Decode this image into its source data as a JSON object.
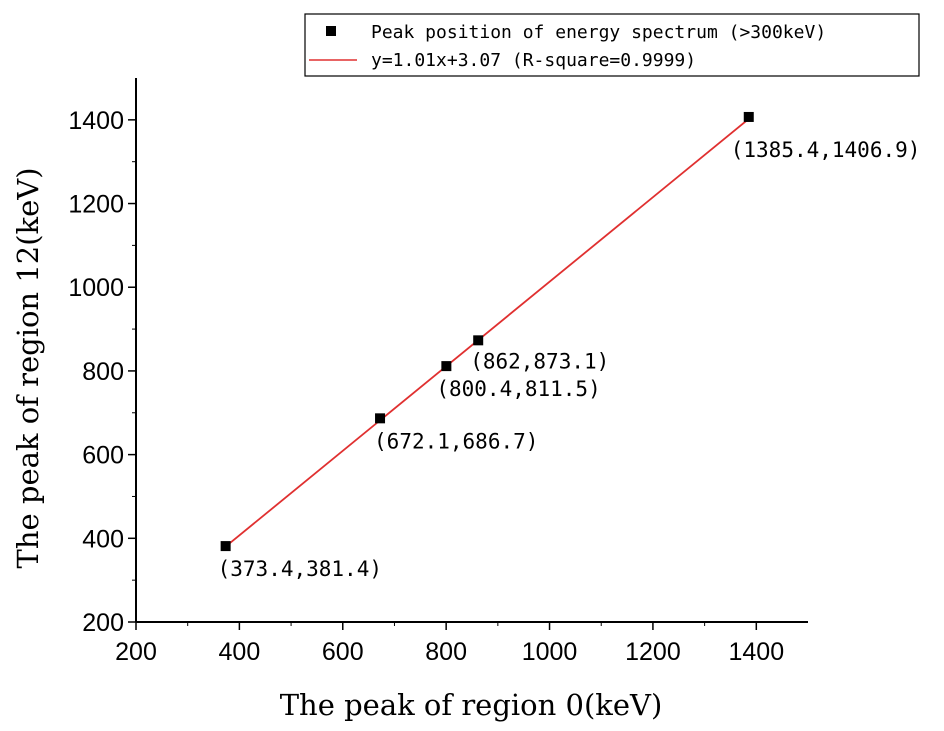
{
  "chart_data": {
    "type": "scatter",
    "xlabel": "The peak of region 0(keV)",
    "ylabel": "The peak of region 12(keV)",
    "xlim": [
      200,
      1500
    ],
    "ylim": [
      200,
      1500
    ],
    "xticks": [
      200,
      400,
      600,
      800,
      1000,
      1200,
      1400
    ],
    "yticks": [
      200,
      400,
      600,
      800,
      1000,
      1200,
      1400
    ],
    "series": [
      {
        "name": "Peak position of energy spectrum (>300keV)",
        "kind": "scatter",
        "color": "#000000",
        "points": [
          {
            "x": 373.4,
            "y": 381.4,
            "label": "(373.4,381.4)"
          },
          {
            "x": 672.1,
            "y": 686.7,
            "label": "(672.1,686.7)"
          },
          {
            "x": 800.4,
            "y": 811.5,
            "label": "(800.4,811.5)"
          },
          {
            "x": 862,
            "y": 873.1,
            "label": "(862,873.1)"
          },
          {
            "x": 1385.4,
            "y": 1406.9,
            "label": "(1385.4,1406.9)"
          }
        ]
      },
      {
        "name": "y=1.01x+3.07 (R-square=0.9999)",
        "kind": "line",
        "color": "#e03030",
        "slope": 1.01,
        "intercept": 3.07,
        "x_range": [
          373.4,
          1385.4
        ]
      }
    ],
    "legend": "top-right"
  }
}
